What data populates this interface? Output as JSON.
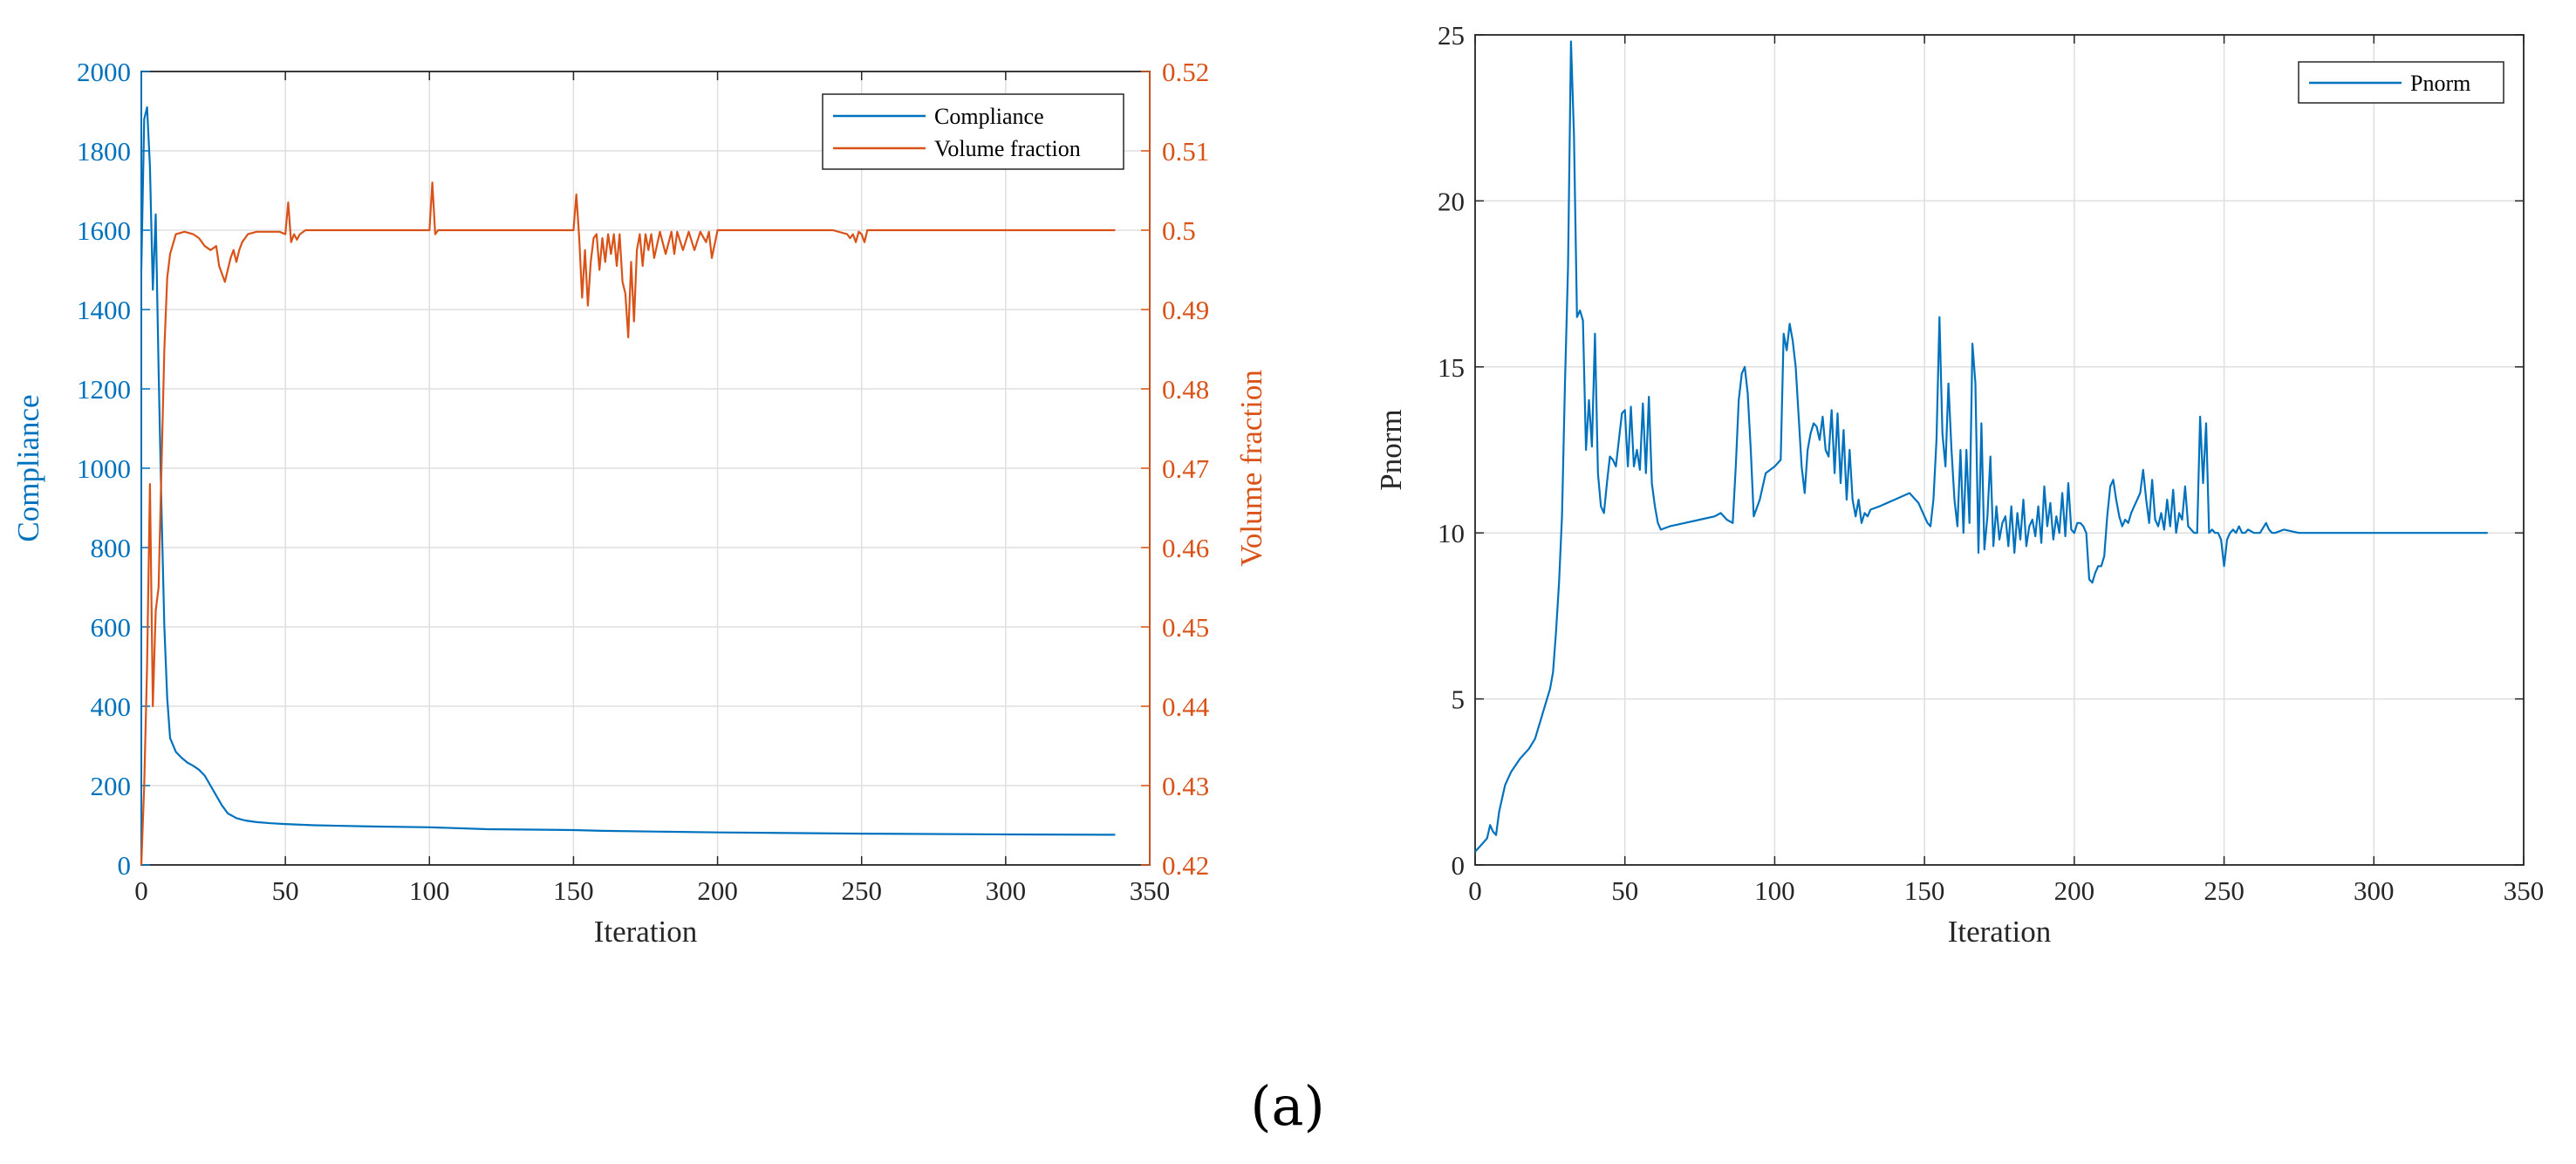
{
  "figure": {
    "caption": "(a)"
  },
  "colors": {
    "compliance": "#0072BD",
    "volume": "#D95319",
    "pnorm": "#0072BD",
    "grid": "#DFDFDF",
    "axis": "#262626"
  },
  "chart_data": [
    {
      "type": "line",
      "title": "",
      "xlabel": "Iteration",
      "ylabel": "Compliance",
      "ylabel_right": "Volume fraction",
      "xlim": [
        0,
        350
      ],
      "ylim": [
        0,
        2000
      ],
      "ylim_right": [
        0.42,
        0.52
      ],
      "x_ticks": [
        0,
        50,
        100,
        150,
        200,
        250,
        300,
        350
      ],
      "y_ticks": [
        0,
        200,
        400,
        600,
        800,
        1000,
        1200,
        1400,
        1600,
        1800,
        2000
      ],
      "y_ticks_right": [
        0.42,
        0.43,
        0.44,
        0.45,
        0.46,
        0.47,
        0.48,
        0.49,
        0.5,
        0.51,
        0.52
      ],
      "grid": true,
      "legend_position": "top-right",
      "series": [
        {
          "name": "Compliance",
          "axis": "left",
          "x": [
            0,
            1,
            2,
            3,
            4,
            5,
            6,
            7,
            8,
            9,
            10,
            12,
            14,
            16,
            18,
            20,
            22,
            24,
            26,
            28,
            30,
            33,
            36,
            40,
            45,
            50,
            60,
            80,
            100,
            120,
            150,
            160,
            180,
            200,
            250,
            300,
            338
          ],
          "y": [
            1500,
            1880,
            1910,
            1760,
            1450,
            1640,
            1250,
            900,
            600,
            420,
            320,
            285,
            270,
            258,
            250,
            240,
            225,
            200,
            175,
            150,
            130,
            118,
            112,
            108,
            105,
            103,
            100,
            97,
            95,
            90,
            88,
            86,
            84,
            82,
            79,
            77,
            76
          ]
        },
        {
          "name": "Volume fraction",
          "axis": "right",
          "x": [
            0,
            1,
            2,
            3,
            4,
            5,
            6,
            7,
            8,
            9,
            10,
            12,
            15,
            18,
            20,
            22,
            24,
            26,
            27,
            28,
            29,
            30,
            31,
            32,
            33,
            34,
            35,
            37,
            40,
            45,
            48,
            50,
            51,
            52,
            53,
            54,
            55,
            57,
            60,
            70,
            80,
            90,
            99,
            100,
            101,
            102,
            103,
            105,
            110,
            130,
            149,
            150,
            151,
            152,
            153,
            154,
            155,
            156,
            157,
            158,
            159,
            160,
            161,
            162,
            163,
            164,
            165,
            166,
            167,
            168,
            169,
            170,
            171,
            172,
            173,
            174,
            175,
            176,
            177,
            178,
            180,
            182,
            184,
            185,
            186,
            188,
            190,
            192,
            194,
            196,
            197,
            198,
            200,
            210,
            220,
            240,
            245,
            246,
            247,
            248,
            249,
            250,
            251,
            252,
            260,
            280,
            300,
            320,
            338
          ],
          "y": [
            0.42,
            0.43,
            0.445,
            0.468,
            0.44,
            0.452,
            0.455,
            0.47,
            0.485,
            0.494,
            0.497,
            0.4995,
            0.4998,
            0.4995,
            0.499,
            0.498,
            0.4975,
            0.498,
            0.4955,
            0.4945,
            0.4935,
            0.495,
            0.4965,
            0.4975,
            0.496,
            0.4975,
            0.4985,
            0.4995,
            0.4998,
            0.4998,
            0.4998,
            0.4995,
            0.5035,
            0.4985,
            0.4995,
            0.4988,
            0.4995,
            0.5,
            0.5,
            0.5,
            0.5,
            0.5,
            0.5,
            0.5,
            0.506,
            0.4995,
            0.5,
            0.5,
            0.5,
            0.5,
            0.5,
            0.5,
            0.5045,
            0.499,
            0.4915,
            0.4975,
            0.4905,
            0.496,
            0.499,
            0.4995,
            0.495,
            0.499,
            0.496,
            0.4995,
            0.497,
            0.4995,
            0.4955,
            0.4995,
            0.4935,
            0.492,
            0.4865,
            0.496,
            0.4885,
            0.4975,
            0.4995,
            0.4955,
            0.4995,
            0.4975,
            0.4995,
            0.4965,
            0.4998,
            0.497,
            0.4998,
            0.497,
            0.4998,
            0.4975,
            0.4998,
            0.4975,
            0.4998,
            0.4985,
            0.4998,
            0.4965,
            0.5,
            0.5,
            0.5,
            0.5,
            0.4995,
            0.499,
            0.4995,
            0.4985,
            0.4998,
            0.4995,
            0.4985,
            0.5,
            0.5,
            0.5,
            0.5,
            0.5,
            0.5
          ]
        }
      ]
    },
    {
      "type": "line",
      "title": "",
      "xlabel": "Iteration",
      "ylabel": "Pnorm",
      "xlim": [
        0,
        350
      ],
      "ylim": [
        0,
        25
      ],
      "x_ticks": [
        0,
        50,
        100,
        150,
        200,
        250,
        300,
        350
      ],
      "y_ticks": [
        0,
        5,
        10,
        15,
        20,
        25
      ],
      "grid": true,
      "legend_position": "top-right",
      "series": [
        {
          "name": "Pnorm",
          "x": [
            0,
            2,
            4,
            5,
            6,
            7,
            8,
            10,
            12,
            15,
            18,
            20,
            22,
            24,
            25,
            26,
            27,
            28,
            29,
            30,
            31,
            32,
            33,
            34,
            35,
            36,
            37,
            38,
            39,
            40,
            41,
            42,
            43,
            44,
            45,
            46,
            47,
            48,
            49,
            50,
            51,
            52,
            53,
            54,
            55,
            56,
            57,
            58,
            59,
            60,
            61,
            62,
            65,
            70,
            75,
            80,
            82,
            84,
            86,
            87,
            88,
            89,
            90,
            91,
            92,
            93,
            95,
            97,
            100,
            102,
            103,
            104,
            105,
            106,
            107,
            108,
            109,
            110,
            111,
            112,
            113,
            114,
            115,
            116,
            117,
            118,
            119,
            120,
            121,
            122,
            123,
            124,
            125,
            126,
            127,
            128,
            129,
            130,
            131,
            132,
            135,
            140,
            145,
            148,
            150,
            151,
            152,
            153,
            154,
            155,
            156,
            157,
            158,
            159,
            160,
            161,
            162,
            163,
            164,
            165,
            166,
            167,
            168,
            169,
            170,
            171,
            172,
            173,
            174,
            175,
            176,
            177,
            178,
            179,
            180,
            181,
            182,
            183,
            184,
            185,
            186,
            187,
            188,
            189,
            190,
            191,
            192,
            193,
            194,
            195,
            196,
            197,
            198,
            199,
            200,
            201,
            202,
            203,
            204,
            205,
            206,
            207,
            208,
            209,
            210,
            211,
            212,
            213,
            214,
            215,
            216,
            217,
            218,
            219,
            220,
            221,
            222,
            223,
            224,
            225,
            226,
            227,
            228,
            229,
            230,
            231,
            232,
            233,
            234,
            235,
            236,
            237,
            238,
            239,
            240,
            241,
            242,
            243,
            244,
            245,
            246,
            247,
            248,
            249,
            250,
            251,
            252,
            253,
            254,
            255,
            256,
            257,
            258,
            260,
            262,
            264,
            265,
            266,
            267,
            270,
            275,
            280,
            285,
            290,
            300,
            310,
            320,
            330,
            338
          ],
          "y": [
            0.4,
            0.6,
            0.8,
            1.2,
            1.0,
            0.9,
            1.6,
            2.4,
            2.8,
            3.2,
            3.5,
            3.8,
            4.4,
            5.0,
            5.3,
            5.8,
            7.0,
            8.5,
            10.5,
            14.5,
            18.0,
            24.8,
            22.0,
            16.5,
            16.7,
            16.4,
            12.5,
            14.0,
            12.6,
            16.0,
            11.8,
            10.8,
            10.6,
            11.5,
            12.3,
            12.2,
            12.0,
            12.8,
            13.6,
            13.7,
            12.0,
            13.8,
            12.0,
            12.5,
            11.9,
            13.9,
            11.8,
            14.1,
            11.5,
            10.8,
            10.3,
            10.1,
            10.2,
            10.3,
            10.4,
            10.5,
            10.6,
            10.4,
            10.3,
            12.0,
            14.0,
            14.8,
            15.0,
            14.2,
            12.5,
            10.5,
            11.0,
            11.8,
            12.0,
            12.2,
            16.0,
            15.5,
            16.3,
            15.8,
            15.0,
            13.5,
            12.0,
            11.2,
            12.5,
            13.0,
            13.3,
            13.2,
            12.8,
            13.5,
            12.5,
            12.3,
            13.7,
            11.8,
            13.6,
            11.5,
            13.1,
            11.0,
            12.5,
            11.0,
            10.5,
            11.0,
            10.3,
            10.6,
            10.5,
            10.7,
            10.8,
            11.0,
            11.2,
            10.9,
            10.5,
            10.3,
            10.2,
            11.0,
            12.8,
            16.5,
            13.0,
            12.0,
            14.5,
            12.5,
            11.0,
            10.2,
            12.5,
            10.0,
            12.5,
            10.3,
            15.7,
            14.5,
            9.4,
            13.3,
            9.5,
            10.5,
            12.3,
            9.6,
            10.8,
            9.8,
            10.3,
            10.5,
            9.6,
            10.8,
            9.4,
            10.6,
            9.8,
            11.0,
            9.6,
            10.2,
            10.4,
            9.9,
            10.8,
            9.7,
            11.4,
            10.2,
            10.9,
            9.8,
            10.5,
            10.0,
            11.2,
            9.9,
            11.5,
            10.1,
            10.0,
            10.3,
            10.3,
            10.2,
            10.0,
            8.6,
            8.5,
            8.8,
            9.0,
            9.0,
            9.3,
            10.5,
            11.4,
            11.6,
            11.0,
            10.5,
            10.2,
            10.4,
            10.3,
            10.6,
            10.8,
            11.0,
            11.2,
            11.9,
            11.0,
            10.3,
            11.6,
            10.4,
            10.2,
            10.6,
            10.1,
            11.0,
            10.2,
            11.3,
            10.0,
            10.6,
            10.4,
            11.4,
            10.2,
            10.1,
            10.0,
            10.0,
            13.5,
            11.5,
            13.3,
            10.0,
            10.1,
            10.0,
            10.0,
            9.8,
            9.0,
            9.8,
            10.0,
            10.1,
            10.0,
            10.2,
            10.0,
            10.0,
            10.1,
            10.0,
            10.0,
            10.3,
            10.1,
            10.0,
            10.0,
            10.1,
            10.0,
            10.0,
            10.0,
            10.0,
            10.0,
            10.0,
            10.0,
            10.0,
            10.0
          ]
        }
      ]
    }
  ]
}
